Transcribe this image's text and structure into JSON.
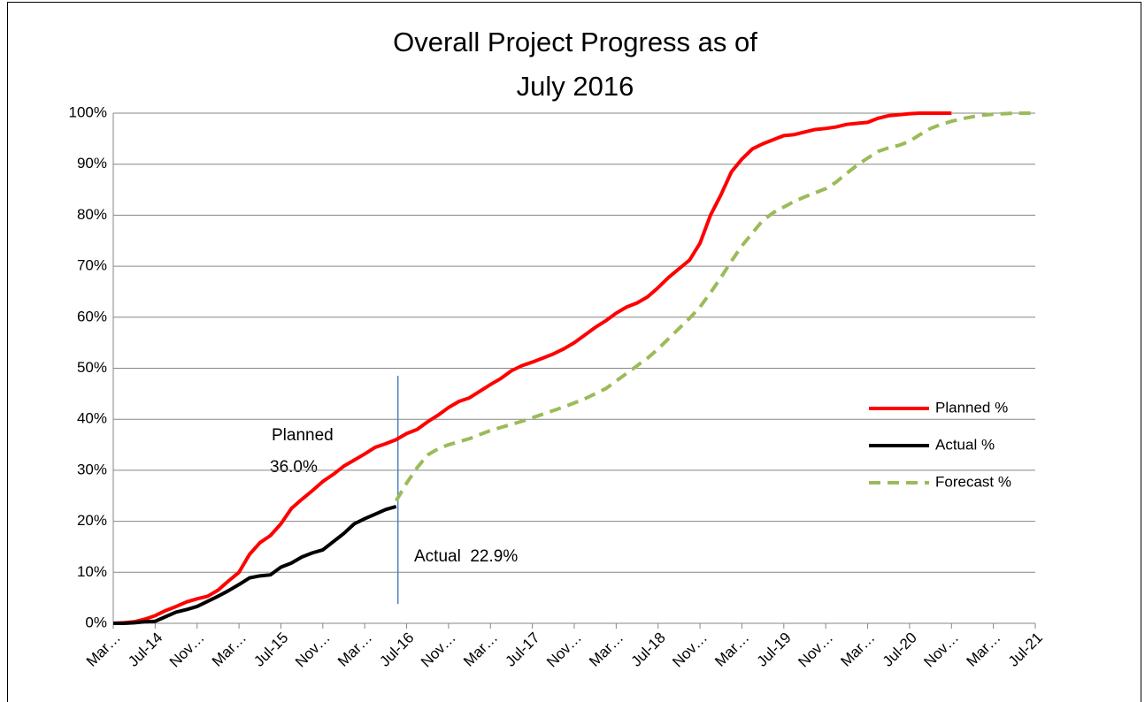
{
  "chart_data": {
    "type": "line",
    "title": [
      "Overall Project Progress as of",
      "July 2016"
    ],
    "categories": [
      "Mar…",
      null,
      null,
      null,
      "Jul-14",
      null,
      null,
      null,
      "Nov…",
      null,
      null,
      null,
      "Mar…",
      null,
      null,
      null,
      "Jul-15",
      null,
      null,
      null,
      "Nov…",
      null,
      null,
      null,
      "Mar…",
      null,
      null,
      null,
      "Jul-16",
      null,
      null,
      null,
      "Nov…",
      null,
      null,
      null,
      "Mar…",
      null,
      null,
      null,
      "Jul-17",
      null,
      null,
      null,
      "Nov…",
      null,
      null,
      null,
      "Mar…",
      null,
      null,
      null,
      "Jul-18",
      null,
      null,
      null,
      "Nov…",
      null,
      null,
      null,
      "Mar…",
      null,
      null,
      null,
      "Jul-19",
      null,
      null,
      null,
      "Nov…",
      null,
      null,
      null,
      "Mar…",
      null,
      null,
      null,
      "Jul-20",
      null,
      null,
      null,
      "Nov…",
      null,
      null,
      null,
      "Mar…",
      null,
      null,
      null,
      "Jul-21"
    ],
    "series": [
      {
        "name": "Planned %",
        "color": "#ff0000",
        "dashed": false,
        "values": [
          0,
          0.1,
          0.3,
          0.8,
          1.5,
          2.5,
          3.3,
          4.2,
          4.8,
          5.3,
          6.5,
          8.3,
          10,
          13.5,
          15.8,
          17.2,
          19.5,
          22.5,
          24.3,
          26,
          27.8,
          29.2,
          30.8,
          32,
          33.2,
          34.5,
          35.2,
          36.0,
          37.2,
          38,
          39.5,
          40.8,
          42.3,
          43.5,
          44.2,
          45.5,
          46.8,
          48,
          49.5,
          50.5,
          51.2,
          52,
          52.8,
          53.8,
          55,
          56.5,
          58,
          59.3,
          60.8,
          62,
          62.8,
          64,
          65.8,
          67.8,
          69.5,
          71.2,
          74.5,
          80,
          84,
          88.5,
          91,
          93,
          94,
          94.8,
          95.6,
          95.8,
          96.3,
          96.8,
          97,
          97.3,
          97.8,
          98,
          98.2,
          99,
          99.5,
          99.7,
          99.9,
          100,
          100,
          100,
          100,
          null,
          null,
          null,
          null,
          null,
          null,
          null,
          null
        ]
      },
      {
        "name": "Actual %",
        "color": "#000000",
        "dashed": false,
        "values": [
          0,
          0,
          0.1,
          0.3,
          0.4,
          1.3,
          2.2,
          2.7,
          3.3,
          4.3,
          5.3,
          6.4,
          7.6,
          8.9,
          9.3,
          9.5,
          11,
          11.8,
          13,
          13.8,
          14.4,
          16,
          17.6,
          19.5,
          20.5,
          21.4,
          22.3,
          22.9,
          null,
          null,
          null,
          null,
          null,
          null,
          null,
          null,
          null,
          null,
          null,
          null,
          null,
          null,
          null,
          null,
          null,
          null,
          null,
          null,
          null,
          null,
          null,
          null,
          null,
          null,
          null,
          null,
          null,
          null,
          null,
          null,
          null,
          null,
          null,
          null,
          null,
          null,
          null,
          null,
          null,
          null,
          null,
          null,
          null,
          null,
          null,
          null,
          null,
          null,
          null,
          null,
          null,
          null,
          null,
          null,
          null,
          null,
          null,
          null,
          null
        ]
      },
      {
        "name": "Forecast %",
        "color": "#9bbb59",
        "dashed": true,
        "values": [
          null,
          null,
          null,
          null,
          null,
          null,
          null,
          null,
          null,
          null,
          null,
          null,
          null,
          null,
          null,
          null,
          null,
          null,
          null,
          null,
          null,
          null,
          null,
          null,
          null,
          null,
          null,
          24,
          27.5,
          30.5,
          33,
          34.2,
          35,
          35.6,
          36.2,
          37,
          37.8,
          38.4,
          39,
          39.6,
          40.3,
          41,
          41.7,
          42.4,
          43.2,
          44,
          45,
          46,
          47.5,
          49,
          50.5,
          52,
          53.8,
          55.8,
          57.8,
          59.8,
          62,
          64.8,
          67.8,
          71,
          74,
          76.5,
          79,
          80.5,
          81.6,
          82.7,
          83.6,
          84.4,
          85.2,
          86.5,
          88.2,
          89.8,
          91.2,
          92.5,
          93.2,
          93.7,
          94.5,
          95.8,
          97,
          97.8,
          98.4,
          98.9,
          99.3,
          99.6,
          99.8,
          99.9,
          100,
          100,
          100
        ]
      }
    ],
    "ylim": [
      0,
      100
    ],
    "yticks": [
      {
        "value": 0,
        "label": "0%"
      },
      {
        "value": 10,
        "label": "10%"
      },
      {
        "value": 20,
        "label": "20%"
      },
      {
        "value": 30,
        "label": "30%"
      },
      {
        "value": 40,
        "label": "40%"
      },
      {
        "value": 50,
        "label": "50%"
      },
      {
        "value": 60,
        "label": "60%"
      },
      {
        "value": 70,
        "label": "70%"
      },
      {
        "value": 80,
        "label": "80%"
      },
      {
        "value": 90,
        "label": "90%"
      },
      {
        "value": 100,
        "label": "100%"
      }
    ],
    "grid": true,
    "legend": "right",
    "annotations": [
      [
        "Planned",
        "36.0%"
      ],
      [
        "Actual  22.9%"
      ]
    ]
  }
}
